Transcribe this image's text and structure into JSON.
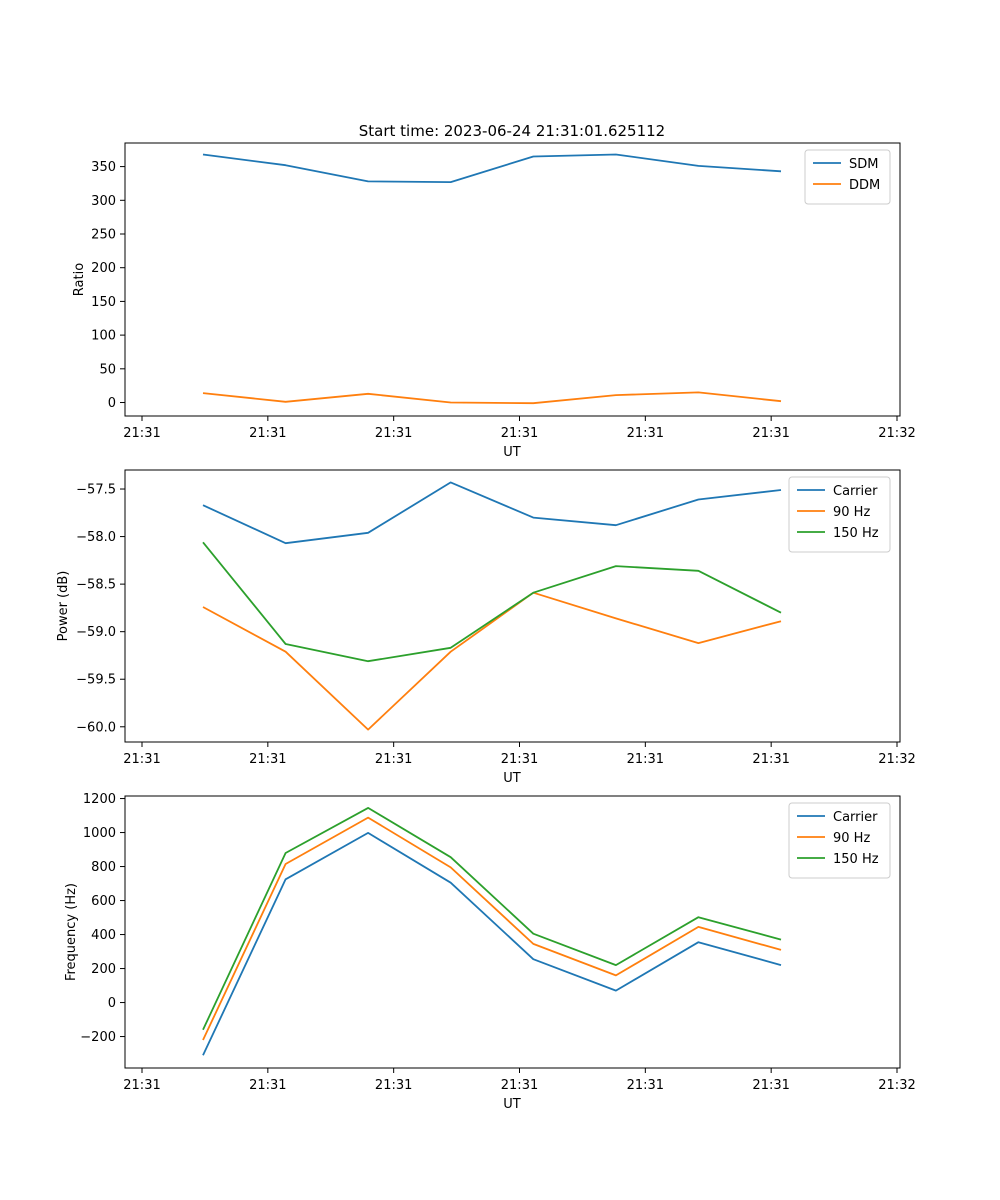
{
  "figure_title": "Start time: 2023-06-24 21:31:01.625112",
  "chart_data": [
    {
      "type": "line",
      "title": "",
      "xlabel": "UT",
      "ylabel": "Ratio",
      "x_tick_labels": [
        "21:31",
        "21:31",
        "21:31",
        "21:31",
        "21:31",
        "21:31",
        "21:32"
      ],
      "ylim": [
        -20,
        385
      ],
      "y_ticks": [
        0,
        50,
        100,
        150,
        200,
        250,
        300,
        350
      ],
      "legend_position": "top-right",
      "grid": false,
      "series": [
        {
          "name": "SDM",
          "color": "#1f77b4",
          "values": [
            368,
            352,
            328,
            327,
            365,
            368,
            351,
            343
          ]
        },
        {
          "name": "DDM",
          "color": "#ff7f0e",
          "values": [
            14,
            1,
            13,
            0,
            -1,
            11,
            15,
            2
          ]
        }
      ]
    },
    {
      "type": "line",
      "title": "",
      "xlabel": "UT",
      "ylabel": "Power (dB)",
      "x_tick_labels": [
        "21:31",
        "21:31",
        "21:31",
        "21:31",
        "21:31",
        "21:31",
        "21:32"
      ],
      "ylim": [
        -60.16,
        -57.3
      ],
      "y_ticks": [
        -60.0,
        -59.5,
        -59.0,
        -58.5,
        -58.0,
        -57.5
      ],
      "legend_position": "top-right",
      "grid": false,
      "series": [
        {
          "name": "Carrier",
          "color": "#1f77b4",
          "values": [
            -57.67,
            -58.07,
            -57.96,
            -57.43,
            -57.8,
            -57.88,
            -57.61,
            -57.51
          ]
        },
        {
          "name": "90 Hz",
          "color": "#ff7f0e",
          "values": [
            -58.74,
            -59.21,
            -60.03,
            -59.21,
            -58.59,
            -58.86,
            -59.12,
            -58.89
          ]
        },
        {
          "name": "150 Hz",
          "color": "#2ca02c",
          "values": [
            -58.06,
            -59.13,
            -59.31,
            -59.17,
            -58.59,
            -58.31,
            -58.36,
            -58.8
          ]
        }
      ]
    },
    {
      "type": "line",
      "title": "",
      "xlabel": "UT",
      "ylabel": "Frequency (Hz)",
      "x_tick_labels": [
        "21:31",
        "21:31",
        "21:31",
        "21:31",
        "21:31",
        "21:31",
        "21:32"
      ],
      "ylim": [
        -385,
        1215
      ],
      "y_ticks": [
        -200,
        0,
        200,
        400,
        600,
        800,
        1000,
        1200
      ],
      "legend_position": "top-right",
      "grid": false,
      "series": [
        {
          "name": "Carrier",
          "color": "#1f77b4",
          "values": [
            -310,
            725,
            998,
            705,
            255,
            70,
            355,
            220
          ]
        },
        {
          "name": "90 Hz",
          "color": "#ff7f0e",
          "values": [
            -220,
            815,
            1088,
            795,
            345,
            160,
            445,
            310
          ]
        },
        {
          "name": "150 Hz",
          "color": "#2ca02c",
          "values": [
            -160,
            880,
            1145,
            855,
            405,
            220,
            502,
            370
          ]
        }
      ]
    }
  ]
}
